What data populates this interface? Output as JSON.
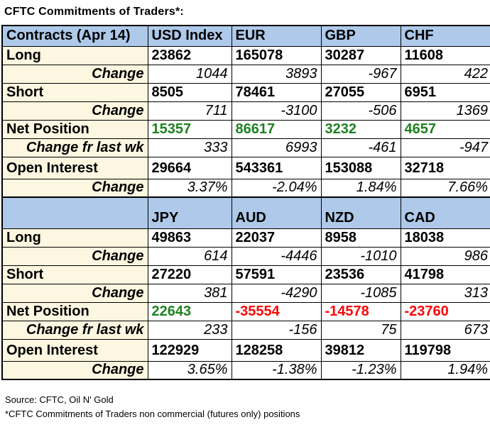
{
  "title": "CFTC Commitments of Traders*:",
  "colors": {
    "header_bg": "#AEC9E9",
    "label_bg": "#FDF6E0",
    "positive": "#1E8220",
    "negative": "#FB0606",
    "border": "#000000"
  },
  "footer": {
    "source": "Source: CFTC, Oil N' Gold",
    "note": "*CFTC Commitments of Traders non commercial (futures only) positions"
  },
  "chart_data": {
    "type": "table",
    "title": "CFTC Commitments of Traders*:",
    "sections": [
      {
        "header_label": "Contracts (Apr 14)",
        "currencies": [
          "USD Index",
          "EUR",
          "GBP",
          "CHF"
        ],
        "rows": [
          {
            "label": "Long",
            "kind": "main",
            "values": [
              "23862",
              "165078",
              "30287",
              "11608"
            ]
          },
          {
            "label": "Change",
            "kind": "change",
            "values": [
              "1044",
              "3893",
              "-967",
              "422"
            ]
          },
          {
            "label": "Short",
            "kind": "main",
            "values": [
              "8505",
              "78461",
              "27055",
              "6951"
            ]
          },
          {
            "label": "Change",
            "kind": "change",
            "values": [
              "711",
              "-3100",
              "-506",
              "1369"
            ]
          },
          {
            "label": "Net Position",
            "kind": "net",
            "values": [
              "15357",
              "86617",
              "3232",
              "4657"
            ],
            "value_colors": [
              "positive",
              "positive",
              "positive",
              "positive"
            ]
          },
          {
            "label": "Change fr last wk",
            "kind": "change",
            "values": [
              "333",
              "6993",
              "-461",
              "-947"
            ]
          },
          {
            "label": "Open Interest",
            "kind": "main-tall",
            "values": [
              "29664",
              "543361",
              "153088",
              "32718"
            ]
          },
          {
            "label": "Change",
            "kind": "change",
            "values": [
              "3.37%",
              "-2.04%",
              "1.84%",
              "7.66%"
            ]
          }
        ]
      },
      {
        "header_label": "",
        "currencies": [
          "JPY",
          "AUD",
          "NZD",
          "CAD"
        ],
        "rows": [
          {
            "label": "Long",
            "kind": "main",
            "values": [
              "49863",
              "22037",
              "8958",
              "18038"
            ]
          },
          {
            "label": "Change",
            "kind": "change",
            "values": [
              "614",
              "-4446",
              "-1010",
              "986"
            ]
          },
          {
            "label": "Short",
            "kind": "main",
            "values": [
              "27220",
              "57591",
              "23536",
              "41798"
            ]
          },
          {
            "label": "Change",
            "kind": "change",
            "values": [
              "381",
              "-4290",
              "-1085",
              "313"
            ]
          },
          {
            "label": "Net Position",
            "kind": "net",
            "values": [
              "22643",
              "-35554",
              "-14578",
              "-23760"
            ],
            "value_colors": [
              "positive",
              "negative",
              "negative",
              "negative"
            ]
          },
          {
            "label": "Change fr last wk",
            "kind": "change",
            "values": [
              "233",
              "-156",
              "75",
              "673"
            ]
          },
          {
            "label": "Open Interest",
            "kind": "main-tall",
            "values": [
              "122929",
              "128258",
              "39812",
              "119798"
            ]
          },
          {
            "label": "Change",
            "kind": "change",
            "values": [
              "3.65%",
              "-1.38%",
              "-1.23%",
              "1.94%"
            ]
          }
        ]
      }
    ]
  }
}
